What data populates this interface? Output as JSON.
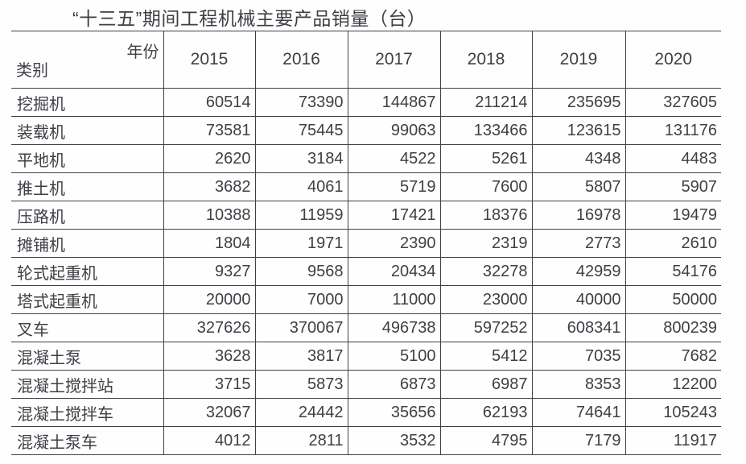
{
  "title": "“十三五”期间工程机械主要产品销量（台）",
  "table_header": {
    "corner_top_right": "年份",
    "corner_bottom_left": "类别"
  },
  "chart_data": {
    "type": "table",
    "title": "“十三五”期间工程机械主要产品销量（台）",
    "unit": "台",
    "columns": [
      "2015",
      "2016",
      "2017",
      "2018",
      "2019",
      "2020"
    ],
    "rows": [
      {
        "label": "挖掘机",
        "values": [
          60514,
          73390,
          144867,
          211214,
          235695,
          327605
        ]
      },
      {
        "label": "装载机",
        "values": [
          73581,
          75445,
          99063,
          133466,
          123615,
          131176
        ]
      },
      {
        "label": "平地机",
        "values": [
          2620,
          3184,
          4522,
          5261,
          4348,
          4483
        ]
      },
      {
        "label": "推土机",
        "values": [
          3682,
          4061,
          5719,
          7600,
          5807,
          5907
        ]
      },
      {
        "label": "压路机",
        "values": [
          10388,
          11959,
          17421,
          18376,
          16978,
          19479
        ]
      },
      {
        "label": "摊铺机",
        "values": [
          1804,
          1971,
          2390,
          2319,
          2773,
          2610
        ]
      },
      {
        "label": "轮式起重机",
        "values": [
          9327,
          9568,
          20434,
          32278,
          42959,
          54176
        ]
      },
      {
        "label": "塔式起重机",
        "values": [
          20000,
          7000,
          11000,
          23000,
          40000,
          50000
        ]
      },
      {
        "label": "叉车",
        "values": [
          327626,
          370067,
          496738,
          597252,
          608341,
          800239
        ]
      },
      {
        "label": "混凝土泵",
        "values": [
          3628,
          3817,
          5100,
          5412,
          7035,
          7682
        ]
      },
      {
        "label": "混凝土搅拌站",
        "values": [
          3715,
          5873,
          6873,
          6987,
          8353,
          12200
        ]
      },
      {
        "label": "混凝土搅拌车",
        "values": [
          32067,
          24442,
          35656,
          62193,
          74641,
          105243
        ]
      },
      {
        "label": "混凝土泵车",
        "values": [
          4012,
          2811,
          3532,
          4795,
          7179,
          11917
        ]
      }
    ],
    "colors": {
      "text": "#3d4045",
      "border": "#3e4146",
      "background": "#fefefe"
    }
  }
}
